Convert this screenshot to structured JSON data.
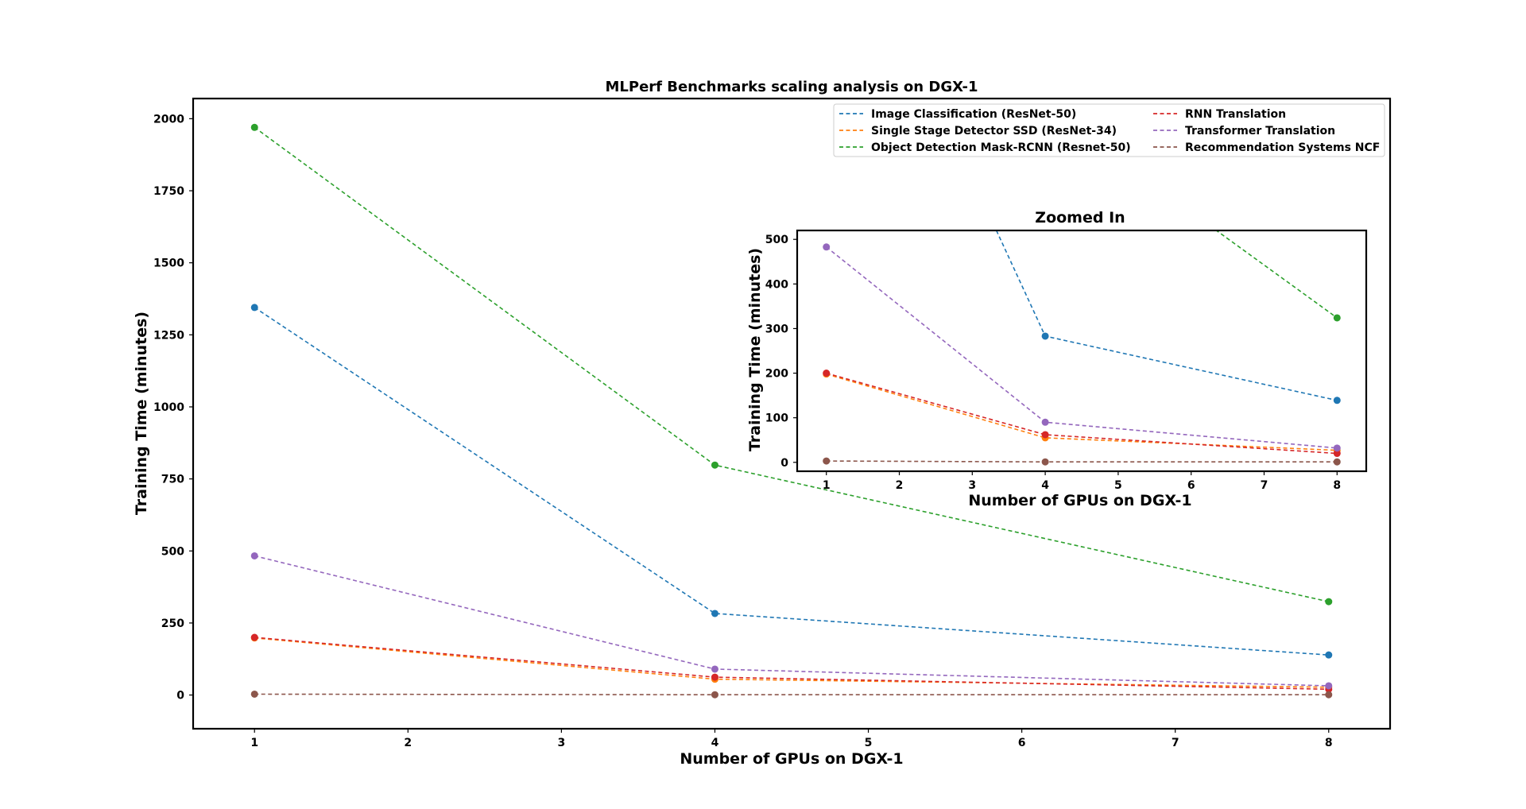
{
  "chart_data": {
    "type": "line",
    "title": "MLPerf Benchmarks scaling analysis on DGX-1",
    "xlabel": "Number of GPUs on DGX-1",
    "ylabel": "Training Time (minutes)",
    "x": [
      1,
      4,
      8
    ],
    "xlim": [
      0.6,
      8.4
    ],
    "ylim": [
      -117,
      2070
    ],
    "xticks": [
      1,
      2,
      3,
      4,
      5,
      6,
      7,
      8
    ],
    "yticks": [
      0,
      250,
      500,
      750,
      1000,
      1250,
      1500,
      1750,
      2000
    ],
    "line_style": "dashed",
    "markers": true,
    "grid": false,
    "legend": {
      "location": "upper-right",
      "columns": 2
    },
    "series": [
      {
        "name": "Image Classification (ResNet-50)",
        "color": "#1f77b4",
        "values": [
          1345,
          283,
          139
        ]
      },
      {
        "name": "Single Stage Detector SSD (ResNet-34)",
        "color": "#ff7f0e",
        "values": [
          198,
          55,
          27
        ]
      },
      {
        "name": "Object Detection Mask-RCNN (Resnet-50)",
        "color": "#2ca02c",
        "values": [
          1970,
          798,
          324
        ]
      },
      {
        "name": "RNN Translation",
        "color": "#d62728",
        "values": [
          200,
          62,
          20
        ]
      },
      {
        "name": "Transformer Translation",
        "color": "#9467bd",
        "values": [
          483,
          90,
          32
        ]
      },
      {
        "name": "Recommendation Systems NCF",
        "color": "#8c564b",
        "values": [
          3,
          1,
          1
        ]
      }
    ],
    "inset": {
      "title": "Zoomed In",
      "xlabel": "Number of GPUs on DGX-1",
      "ylabel": "Training Time (minutes)",
      "xlim": [
        0.6,
        8.4
      ],
      "ylim": [
        -20,
        520
      ],
      "xticks": [
        1,
        2,
        3,
        4,
        5,
        6,
        7,
        8
      ],
      "yticks": [
        0,
        100,
        200,
        300,
        400,
        500
      ]
    }
  }
}
